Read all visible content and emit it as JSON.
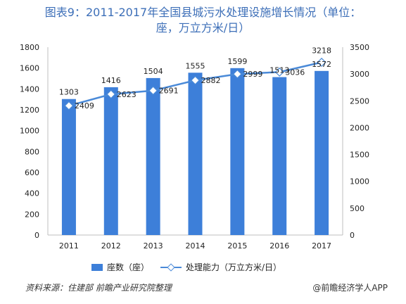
{
  "title": {
    "line1": "图表9：2011-2017年全国县城污水处理设施增长情况（单位：",
    "line2": "座，万立方米/日）"
  },
  "chart_data": {
    "type": "bar",
    "categories": [
      "2011",
      "2012",
      "2013",
      "2014",
      "2015",
      "2016",
      "2017"
    ],
    "series": [
      {
        "name": "座数（座）",
        "type": "bar",
        "axis": "left",
        "values": [
          1303,
          1416,
          1504,
          1555,
          1599,
          1513,
          1572
        ]
      },
      {
        "name": "处理能力（万立方米/日）",
        "type": "line",
        "axis": "right",
        "values": [
          2409,
          2623,
          2691,
          2882,
          2999,
          3036,
          3218
        ]
      }
    ],
    "ylim_left": [
      0,
      1800
    ],
    "ylim_right": [
      0,
      3500
    ],
    "yticks_left": [
      0,
      200,
      400,
      600,
      800,
      1000,
      1200,
      1400,
      1600,
      1800
    ],
    "yticks_right": [
      0,
      500,
      1000,
      1500,
      2000,
      2500,
      3000,
      3500
    ],
    "grid": false,
    "legend_position": "bottom"
  },
  "colors": {
    "bar": "#3d7fd9",
    "line": "#4a8ad8",
    "title": "#3d6fb8"
  },
  "legend": {
    "bar_label": "座数（座）",
    "line_label": "处理能力（万立方米/日）"
  },
  "footer": {
    "source": "资料来源：住建部 前瞻产业研究院整理",
    "brand": "@前瞻经济学人APP"
  }
}
